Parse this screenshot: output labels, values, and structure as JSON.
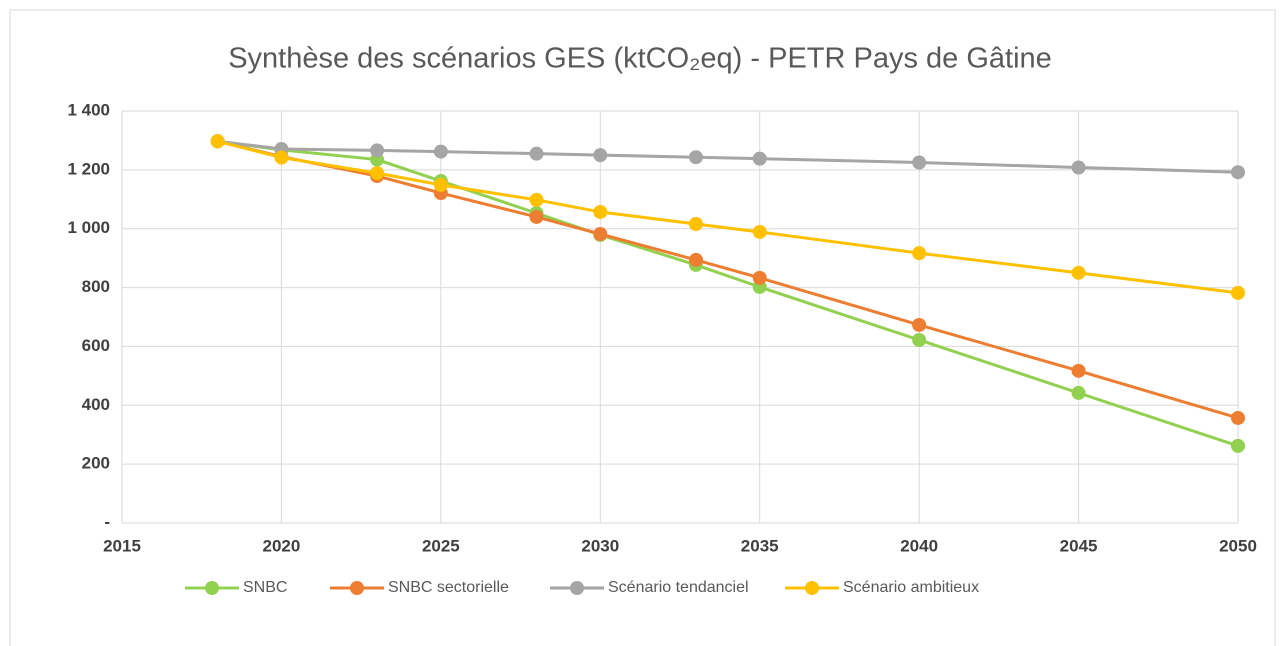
{
  "chart_data": {
    "type": "line",
    "title": "Synthèse des scénarios GES (ktCO₂eq) - PETR Pays de Gâtine",
    "x": [
      2018,
      2020,
      2023,
      2025,
      2028,
      2030,
      2033,
      2035,
      2040,
      2045,
      2050
    ],
    "series": [
      {
        "name": "SNBC",
        "color": "#92d050",
        "values": [
          1297,
          1268,
          1235,
          1162,
          1053,
          979,
          877,
          802,
          622,
          442,
          262
        ]
      },
      {
        "name": "SNBC sectorielle",
        "color": "#ed7d31",
        "values": [
          1297,
          1245,
          1179,
          1121,
          1040,
          982,
          894,
          833,
          673,
          517,
          357
        ]
      },
      {
        "name": "Scénario tendanciel",
        "color": "#a5a5a5",
        "values": [
          1297,
          1271,
          1266,
          1262,
          1255,
          1250,
          1243,
          1238,
          1225,
          1208,
          1192
        ]
      },
      {
        "name": "Scénario ambitieux",
        "color": "#ffc000",
        "values": [
          1297,
          1242,
          1189,
          1149,
          1098,
          1057,
          1016,
          989,
          917,
          850,
          782
        ]
      }
    ],
    "xlim": [
      2015,
      2050
    ],
    "xticks": [
      2015,
      2020,
      2025,
      2030,
      2035,
      2040,
      2045,
      2050
    ],
    "ylim": [
      0,
      1400
    ],
    "yticks": [
      {
        "value": 0,
        "label": "-"
      },
      200,
      400,
      600,
      800,
      {
        "value": 1000,
        "label": "1 000"
      },
      {
        "value": 1200,
        "label": "1 200"
      },
      {
        "value": 1400,
        "label": "1 400"
      }
    ],
    "grid": true,
    "legend": "bottom"
  }
}
